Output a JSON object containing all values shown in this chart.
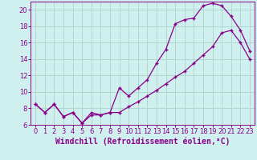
{
  "xlabel": "Windchill (Refroidissement éolien,°C)",
  "bg_color": "#cff0ee",
  "grid_color": "#b0d8d0",
  "line_color": "#880088",
  "xlim": [
    -0.5,
    23.5
  ],
  "ylim": [
    6,
    21
  ],
  "yticks": [
    6,
    8,
    10,
    12,
    14,
    16,
    18,
    20
  ],
  "xticks": [
    0,
    1,
    2,
    3,
    4,
    5,
    6,
    7,
    8,
    9,
    10,
    11,
    12,
    13,
    14,
    15,
    16,
    17,
    18,
    19,
    20,
    21,
    22,
    23
  ],
  "series1_x": [
    0,
    1,
    2,
    3,
    4,
    5,
    6,
    7,
    8,
    9,
    10,
    11,
    12,
    13,
    14,
    15,
    16,
    17,
    18,
    19,
    20,
    21,
    22,
    23
  ],
  "series1_y": [
    8.5,
    7.5,
    8.5,
    7.0,
    7.5,
    6.2,
    7.5,
    7.2,
    7.5,
    10.5,
    9.5,
    10.5,
    11.5,
    13.5,
    15.2,
    18.3,
    18.8,
    19.0,
    20.5,
    20.8,
    20.5,
    19.2,
    17.5,
    15.0
  ],
  "series2_x": [
    0,
    1,
    2,
    3,
    4,
    5,
    6,
    7,
    8,
    9,
    10,
    11,
    12,
    13,
    14,
    15,
    16,
    17,
    18,
    19,
    20,
    21,
    22,
    23
  ],
  "series2_y": [
    8.5,
    7.5,
    8.5,
    7.0,
    7.5,
    6.2,
    7.2,
    7.2,
    7.5,
    7.5,
    8.2,
    8.8,
    9.5,
    10.2,
    11.0,
    11.8,
    12.5,
    13.5,
    14.5,
    15.5,
    17.2,
    17.5,
    16.0,
    14.0
  ],
  "font_color": "#880088",
  "tick_fontsize": 6,
  "label_fontsize": 7
}
